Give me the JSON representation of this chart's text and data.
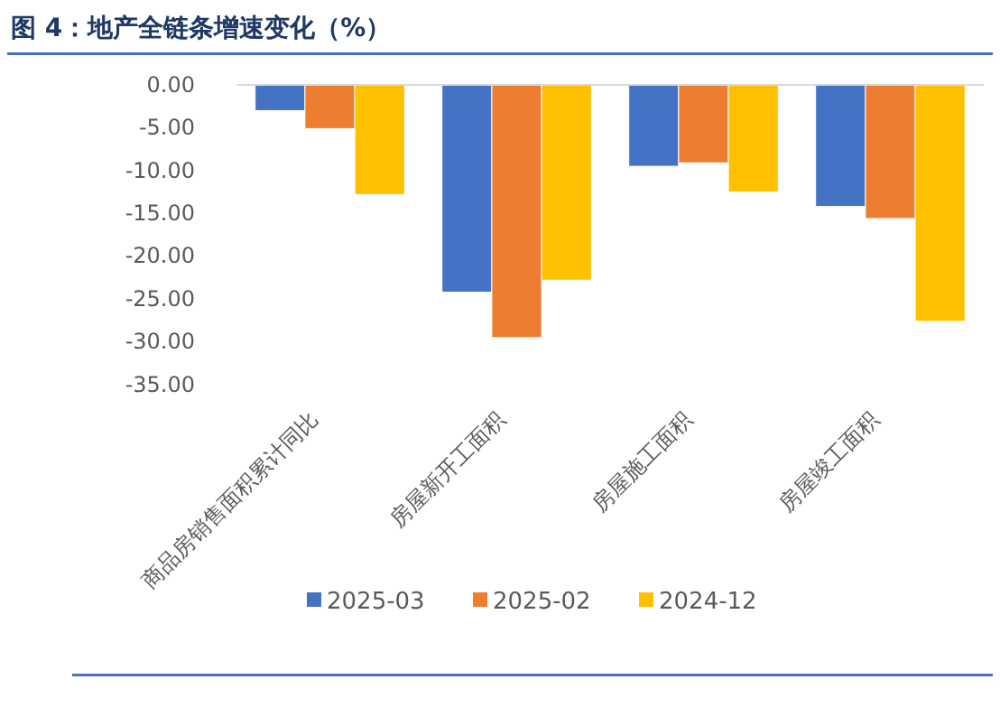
{
  "chart_data": {
    "type": "bar",
    "title": "图 4：地产全链条增速变化（%）",
    "categories": [
      "商品房销售面积累计同比",
      "房屋新开工面积",
      "房屋施工面积",
      "房屋竣工面积"
    ],
    "series": [
      {
        "name": "2025-03",
        "color": "#4472c4",
        "values": [
          -3.0,
          -24.2,
          -9.5,
          -14.2
        ]
      },
      {
        "name": "2025-02",
        "color": "#ed7d31",
        "values": [
          -5.1,
          -29.5,
          -9.1,
          -15.6
        ]
      },
      {
        "name": "2024-12",
        "color": "#ffc000",
        "values": [
          -12.8,
          -22.8,
          -12.5,
          -27.6
        ]
      }
    ],
    "ylim": [
      -35,
      0
    ],
    "yticks": [
      {
        "value": 0,
        "label": "0.00"
      },
      {
        "value": -5,
        "label": "-5.00"
      },
      {
        "value": -10,
        "label": "-10.00"
      },
      {
        "value": -15,
        "label": "-15.00"
      },
      {
        "value": -20,
        "label": "-20.00"
      },
      {
        "value": -25,
        "label": "-25.00"
      },
      {
        "value": -30,
        "label": "-30.00"
      },
      {
        "value": -35,
        "label": "-35.00"
      }
    ],
    "grid": false,
    "legend": "bottom"
  }
}
